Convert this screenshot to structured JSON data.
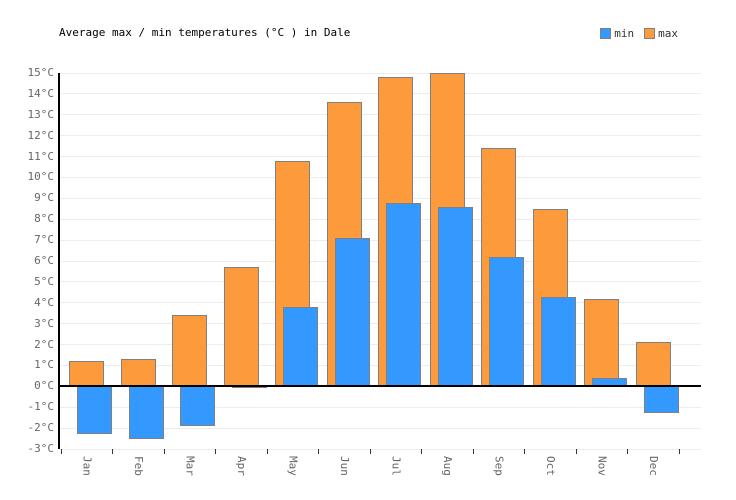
{
  "chart_data": {
    "type": "bar",
    "title": "Average max / min temperatures (°C ) in Dale",
    "categories": [
      "Jan",
      "Feb",
      "Mar",
      "Apr",
      "May",
      "Jun",
      "Jul",
      "Aug",
      "Sep",
      "Oct",
      "Nov",
      "Dec"
    ],
    "series": [
      {
        "name": "min",
        "color": "#3399FF",
        "border_color": "#808080",
        "values": [
          -2.3,
          -2.5,
          -1.9,
          0.0,
          3.8,
          7.1,
          8.8,
          8.6,
          6.2,
          4.3,
          0.4,
          -1.3
        ]
      },
      {
        "name": "max",
        "color": "#FD9A3B",
        "border_color": "#808080",
        "values": [
          1.2,
          1.3,
          3.4,
          5.7,
          10.8,
          13.6,
          14.8,
          15.0,
          11.4,
          8.5,
          4.2,
          2.1
        ]
      }
    ],
    "xlabel": "",
    "ylabel": "",
    "ytick_suffix": "°C",
    "ytick_step": 1,
    "ylim": [
      -3,
      15
    ],
    "grid": true,
    "zero_line": true,
    "legend_position": "top-right"
  },
  "colors": {
    "grid": "#ededed",
    "axis": "#000000",
    "tick": "#333333",
    "label": "#666666",
    "background": "#ffffff"
  }
}
